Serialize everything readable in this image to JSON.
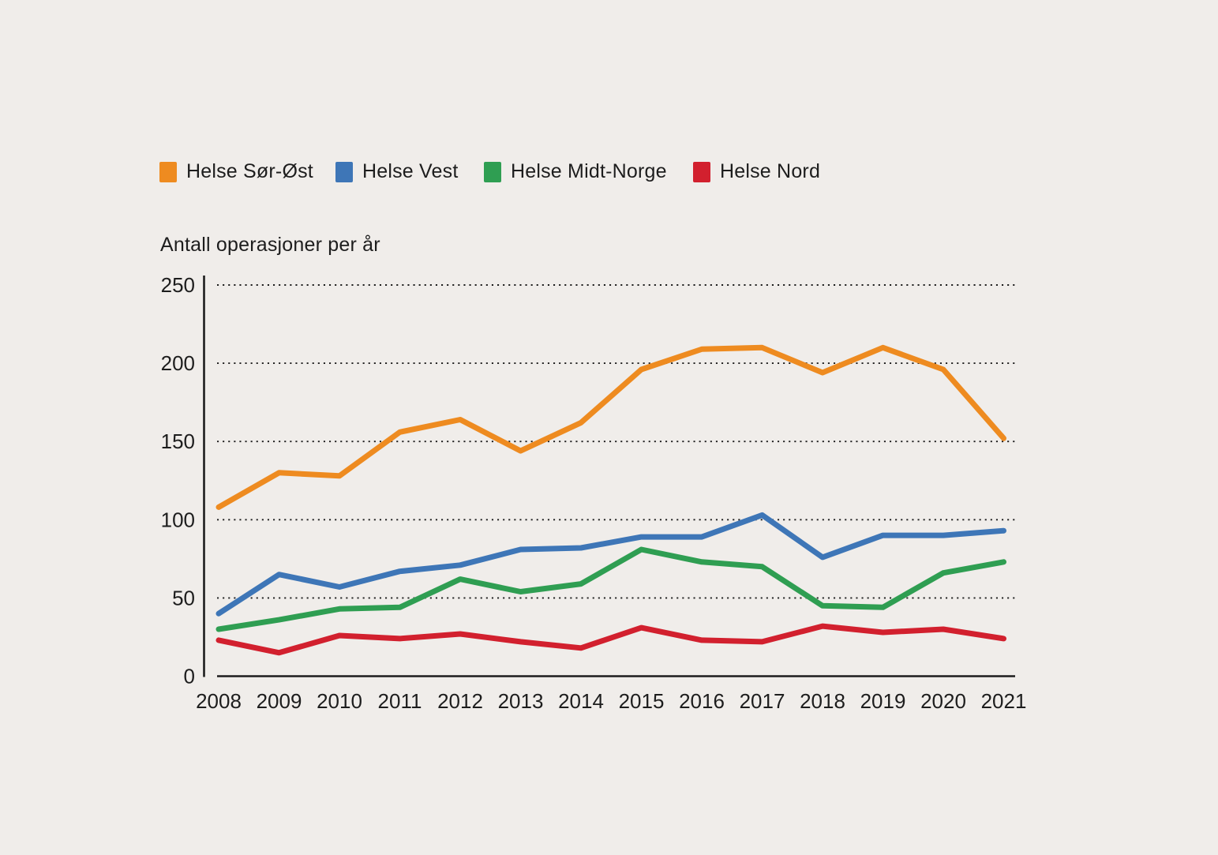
{
  "chart_data": {
    "type": "line",
    "title": "Antall operasjoner per år",
    "x": [
      2008,
      2009,
      2010,
      2011,
      2012,
      2013,
      2014,
      2015,
      2016,
      2017,
      2018,
      2019,
      2020,
      2021
    ],
    "series": [
      {
        "name": "Helse Sør-Øst",
        "color": "#EE8B20",
        "values": [
          108,
          130,
          128,
          156,
          164,
          144,
          162,
          196,
          209,
          210,
          194,
          210,
          196,
          152
        ]
      },
      {
        "name": "Helse Vest",
        "color": "#3E76B7",
        "values": [
          40,
          65,
          57,
          67,
          71,
          81,
          82,
          89,
          89,
          103,
          76,
          90,
          90,
          93
        ]
      },
      {
        "name": "Helse Midt-Norge",
        "color": "#2F9E52",
        "values": [
          30,
          36,
          43,
          44,
          62,
          54,
          59,
          81,
          73,
          70,
          45,
          44,
          66,
          73
        ]
      },
      {
        "name": "Helse Nord",
        "color": "#D2202E",
        "values": [
          23,
          15,
          26,
          24,
          27,
          22,
          18,
          31,
          23,
          22,
          32,
          28,
          30,
          24
        ]
      }
    ],
    "ylabel": "Antall operasjoner per år",
    "ylim": [
      0,
      250
    ],
    "yticks": [
      0,
      50,
      100,
      150,
      200,
      250
    ],
    "grid": "horizontal-dotted",
    "legend_position": "top-left",
    "background_color": "#f0edea",
    "axis_color": "#1d1d1d"
  }
}
